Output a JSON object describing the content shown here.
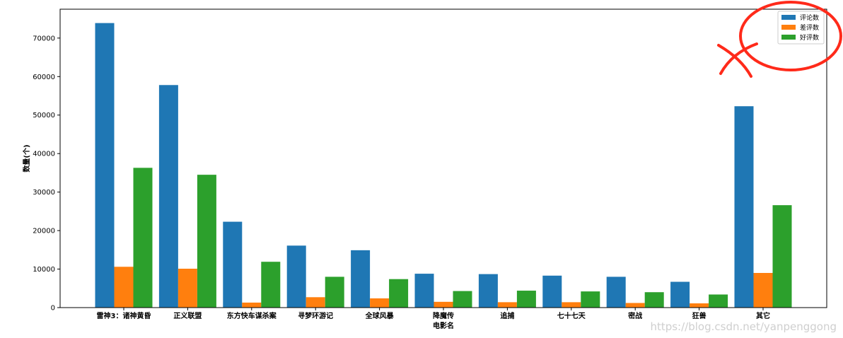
{
  "chart_data": {
    "type": "bar",
    "xlabel": "电影名",
    "ylabel": "数量(个)",
    "ylim": [
      0,
      77500
    ],
    "yticks": [
      0,
      10000,
      20000,
      30000,
      40000,
      50000,
      60000,
      70000
    ],
    "ytick_labels": [
      "0",
      "10000",
      "20000",
      "30000",
      "40000",
      "50000",
      "60000",
      "70000"
    ],
    "categories": [
      "雷神3：诸神黄昏",
      "正义联盟",
      "东方快车谋杀案",
      "寻梦环游记",
      "全球风暴",
      "降魔传",
      "追捕",
      "七十七天",
      "密战",
      "狂兽",
      "其它"
    ],
    "series": [
      {
        "name": "评论数",
        "color": "#1f77b4",
        "values": [
          73900,
          57800,
          22300,
          16100,
          14900,
          8800,
          8700,
          8300,
          8000,
          6700,
          52300
        ]
      },
      {
        "name": "差评数",
        "color": "#ff7f0e",
        "values": [
          10600,
          10100,
          1300,
          2700,
          2400,
          1500,
          1400,
          1400,
          1200,
          1100,
          9000
        ]
      },
      {
        "name": "好评数",
        "color": "#2ca02c",
        "values": [
          36300,
          34500,
          11900,
          8000,
          7400,
          4300,
          4400,
          4200,
          4000,
          3400,
          26600
        ]
      }
    ],
    "legend": "top-right",
    "grid": false
  },
  "annotations": {
    "color": "#ff2a1a",
    "watermark": "https://blog.csdn.net/yanpenggong"
  }
}
